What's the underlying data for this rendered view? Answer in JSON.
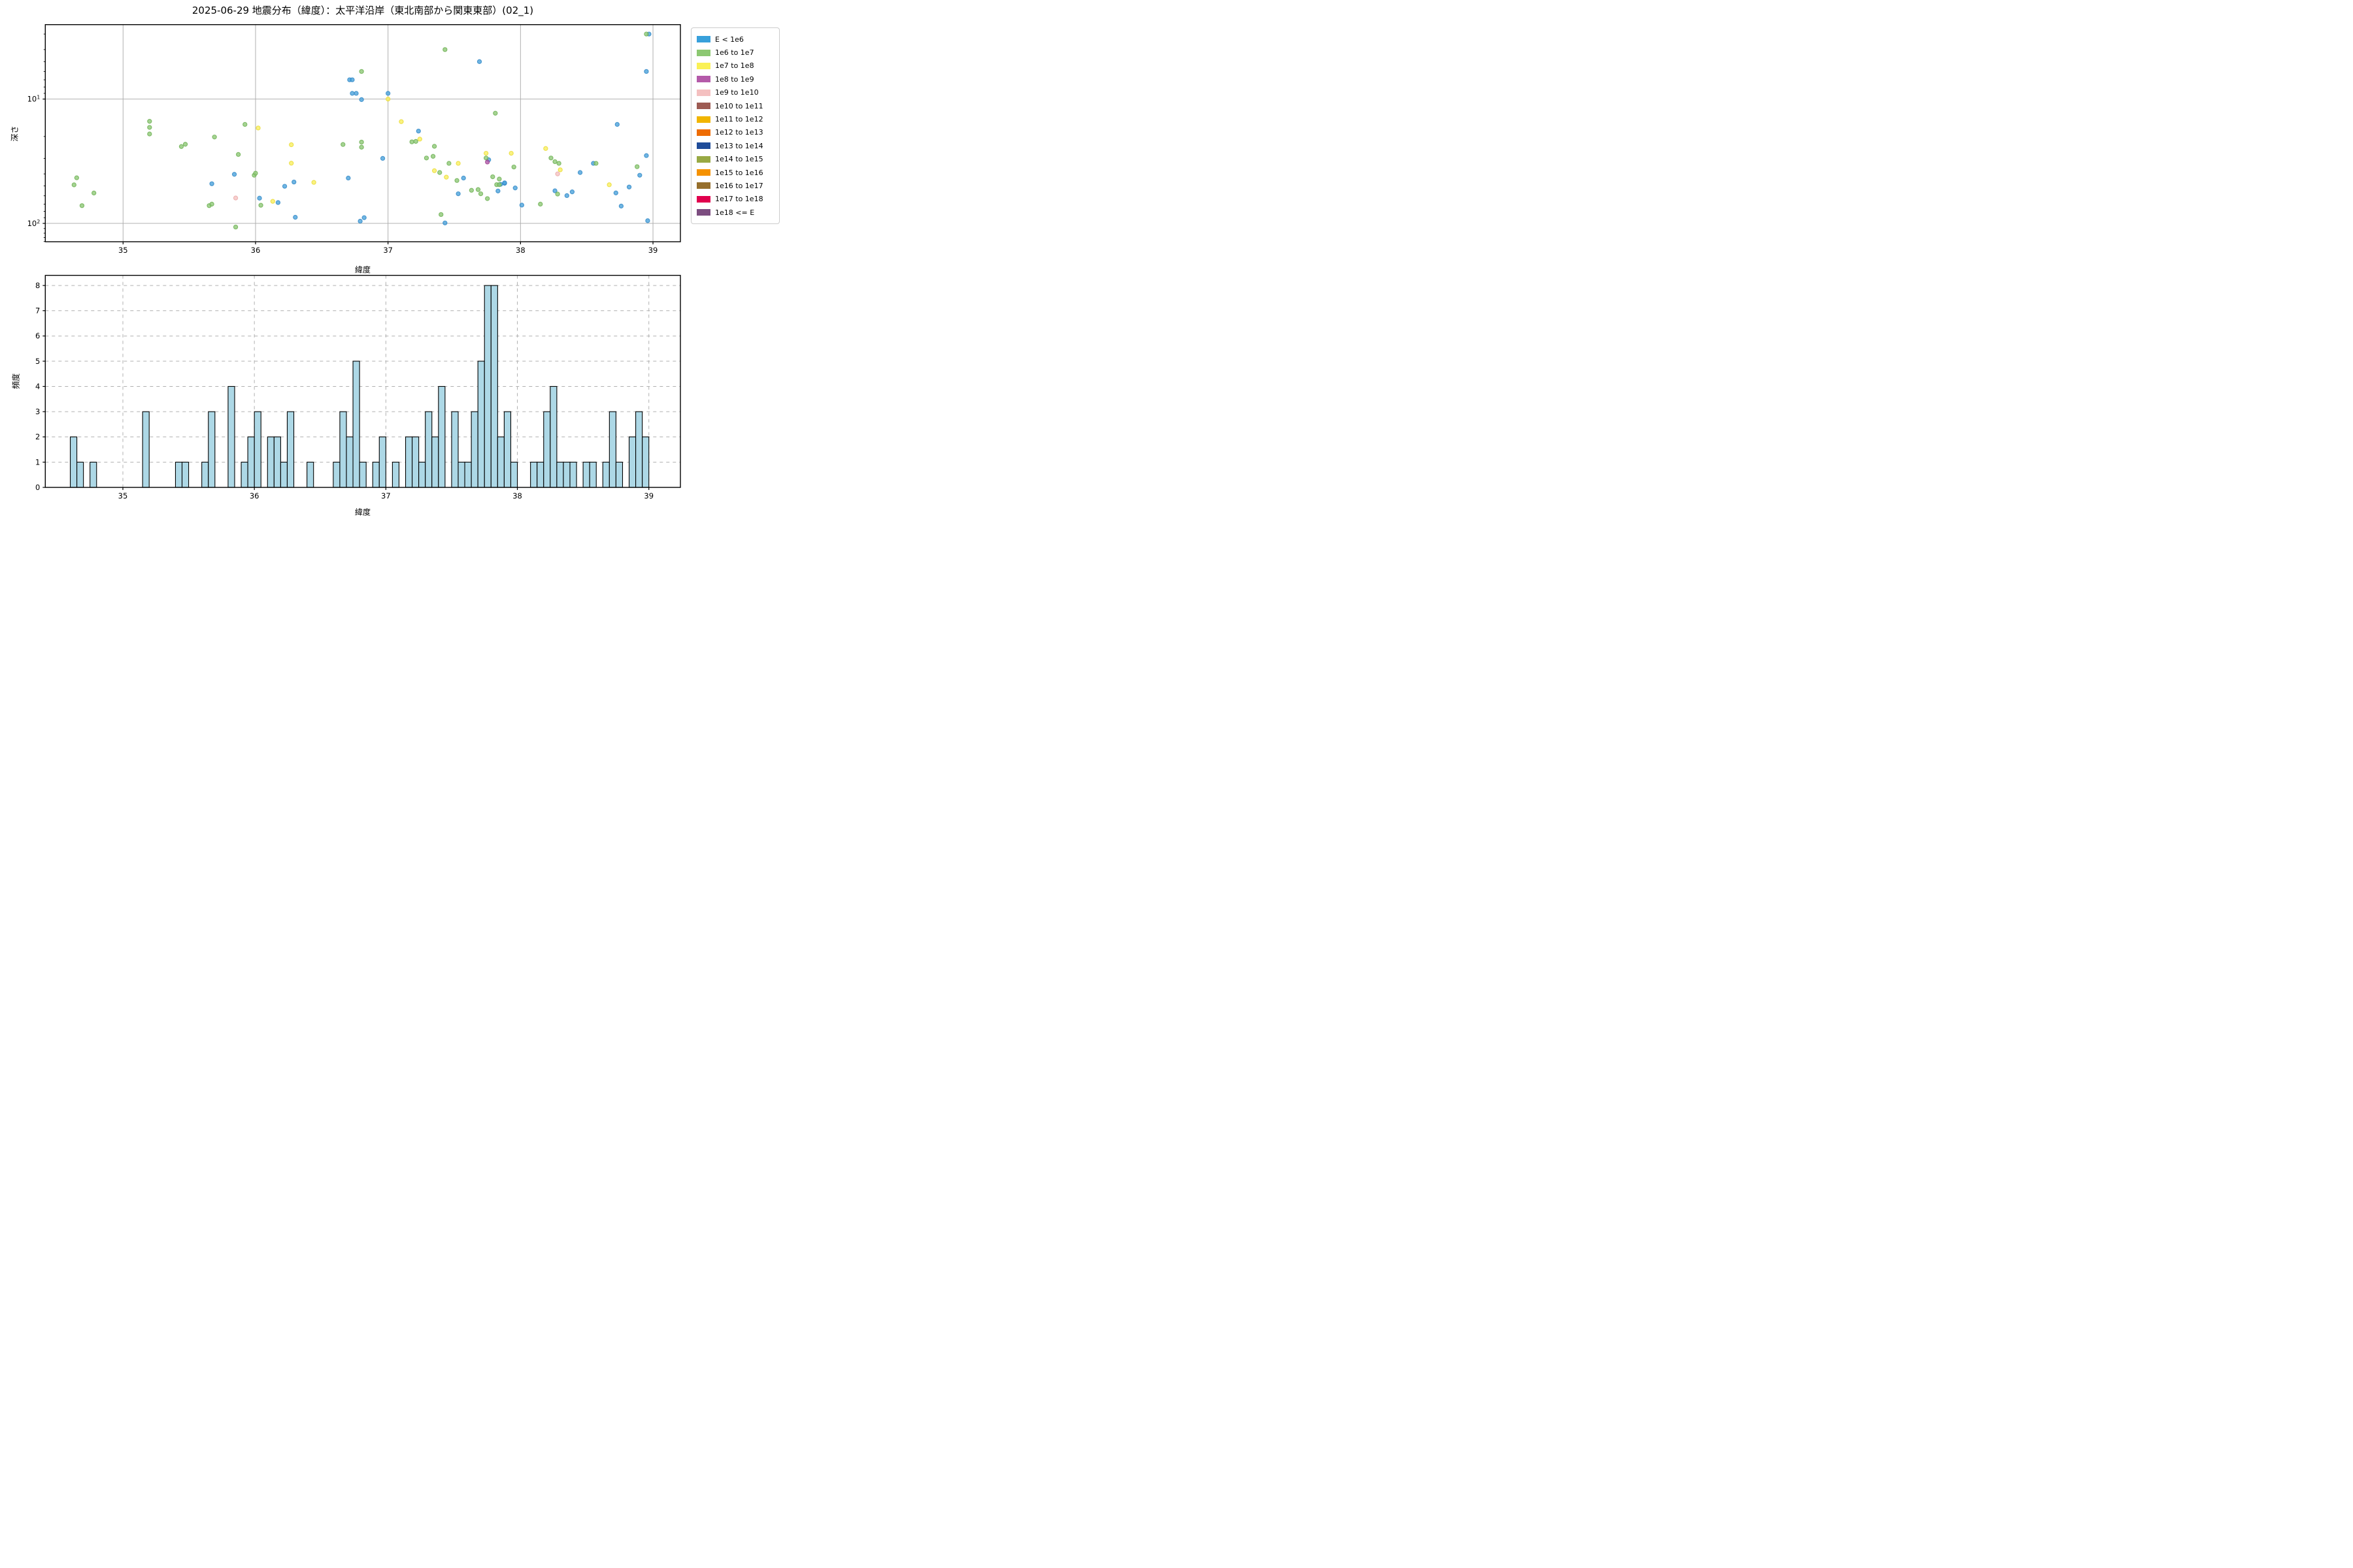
{
  "title": "2025-06-29 地震分布（緯度）：太平洋沿岸（東北南部から関東東部）(02_1)",
  "legend": {
    "items": [
      {
        "label": "E < 1e6",
        "color": "#38a0db"
      },
      {
        "label": "1e6 to 1e7",
        "color": "#8cc872"
      },
      {
        "label": "1e7 to 1e8",
        "color": "#faf156"
      },
      {
        "label": "1e8 to 1e9",
        "color": "#b45aa9"
      },
      {
        "label": "1e9 to 1e10",
        "color": "#f4c0c0"
      },
      {
        "label": "1e10 to 1e11",
        "color": "#9d5b53"
      },
      {
        "label": "1e11 to 1e12",
        "color": "#f1b500"
      },
      {
        "label": "1e12 to 1e13",
        "color": "#ee6c02"
      },
      {
        "label": "1e13 to 1e14",
        "color": "#1f4c99"
      },
      {
        "label": "1e14 to 1e15",
        "color": "#98a944"
      },
      {
        "label": "1e15 to 1e16",
        "color": "#f59200"
      },
      {
        "label": "1e16 to 1e17",
        "color": "#966f2c"
      },
      {
        "label": "1e17 to 1e18",
        "color": "#e0004d"
      },
      {
        "label": "1e18 <= E",
        "color": "#7c4d80"
      }
    ]
  },
  "chart_data": [
    {
      "type": "scatter",
      "title": "2025-06-29 地震分布（緯度）：太平洋沿岸（東北南部から関東東部）(02_1)",
      "xlabel": "緯度",
      "ylabel": "深さ",
      "xlim": [
        34.413,
        39.207
      ],
      "xticks": [
        35,
        36,
        37,
        38,
        39
      ],
      "y_scale": "log-inverted",
      "ylim_depth": [
        2.52,
        140.5
      ],
      "yticks": [
        {
          "text": "10",
          "sup": "1",
          "value": 10
        },
        {
          "text": "10",
          "sup": "2",
          "value": 100
        }
      ],
      "y_minor_ticks": [
        3,
        4,
        5,
        6,
        7,
        8,
        9,
        20,
        30,
        40,
        50,
        60,
        70,
        80,
        90,
        110,
        120,
        130,
        140
      ],
      "grid": "solid",
      "legend_position": "outside-right",
      "series": [
        {
          "name": "E < 1e6",
          "fill": "#4ba3db",
          "edge": "#2e86c5",
          "points": [
            [
              35.67,
              48
            ],
            [
              35.84,
              40.3
            ],
            [
              36.03,
              62.7
            ],
            [
              36.17,
              68
            ],
            [
              36.22,
              50.3
            ],
            [
              36.29,
              46.5
            ],
            [
              36.3,
              89.3
            ],
            [
              36.7,
              43.2
            ],
            [
              36.71,
              7.0
            ],
            [
              36.73,
              7.0
            ],
            [
              36.73,
              9.0
            ],
            [
              36.76,
              9.0
            ],
            [
              36.8,
              10.1
            ],
            [
              36.79,
              96
            ],
            [
              36.82,
              90
            ],
            [
              36.96,
              30
            ],
            [
              37.0,
              9.0
            ],
            [
              37.23,
              18.1
            ],
            [
              37.43,
              99.2
            ],
            [
              37.53,
              57.8
            ],
            [
              37.57,
              43.2
            ],
            [
              37.69,
              5.0
            ],
            [
              37.76,
              30.8
            ],
            [
              37.83,
              54.9
            ],
            [
              37.85,
              48.5
            ],
            [
              37.88,
              47.6
            ],
            [
              37.88,
              47.2
            ],
            [
              37.96,
              51.9
            ],
            [
              38.01,
              71.3
            ],
            [
              38.26,
              54.7
            ],
            [
              38.35,
              59.8
            ],
            [
              38.39,
              55.8
            ],
            [
              38.45,
              39
            ],
            [
              38.55,
              32.9
            ],
            [
              38.72,
              56.9
            ],
            [
              38.73,
              16
            ],
            [
              38.76,
              72.6
            ],
            [
              38.82,
              51
            ],
            [
              38.9,
              41
            ],
            [
              38.95,
              28.5
            ],
            [
              38.95,
              6.0
            ],
            [
              38.97,
              3.0
            ],
            [
              38.96,
              95.2
            ]
          ]
        },
        {
          "name": "1e6 to 1e7",
          "fill": "#8fc877",
          "edge": "#69ae4f",
          "points": [
            [
              34.63,
              49
            ],
            [
              34.65,
              43
            ],
            [
              34.69,
              72
            ],
            [
              34.78,
              57
            ],
            [
              35.2,
              15.1
            ],
            [
              35.2,
              16.9
            ],
            [
              35.2,
              19.1
            ],
            [
              35.44,
              24.1
            ],
            [
              35.47,
              23.1
            ],
            [
              35.65,
              72
            ],
            [
              35.67,
              70
            ],
            [
              35.69,
              20.2
            ],
            [
              35.85,
              107
            ],
            [
              35.87,
              27.9
            ],
            [
              35.92,
              16
            ],
            [
              35.99,
              41
            ],
            [
              36.0,
              39.5
            ],
            [
              36.04,
              71.5
            ],
            [
              36.66,
              23.2
            ],
            [
              36.8,
              22.2
            ],
            [
              36.8,
              24.4
            ],
            [
              36.8,
              6.0
            ],
            [
              37.18,
              22.1
            ],
            [
              37.21,
              21.9
            ],
            [
              37.29,
              29.8
            ],
            [
              37.34,
              28.9
            ],
            [
              37.35,
              24
            ],
            [
              37.39,
              39
            ],
            [
              37.4,
              84.9
            ],
            [
              37.43,
              4.0
            ],
            [
              37.46,
              32.9
            ],
            [
              37.52,
              45.2
            ],
            [
              37.63,
              54.2
            ],
            [
              37.68,
              53.5
            ],
            [
              37.7,
              57.8
            ],
            [
              37.74,
              29.8
            ],
            [
              37.75,
              63.2
            ],
            [
              37.79,
              42.2
            ],
            [
              37.81,
              13
            ],
            [
              37.82,
              48.8
            ],
            [
              37.84,
              48.8
            ],
            [
              37.84,
              44
            ],
            [
              37.95,
              35.2
            ],
            [
              38.15,
              70
            ],
            [
              38.23,
              29.8
            ],
            [
              38.26,
              31.9
            ],
            [
              38.28,
              58.1
            ],
            [
              38.29,
              32.9
            ],
            [
              38.57,
              32.9
            ],
            [
              38.88,
              35
            ],
            [
              38.95,
              3.0
            ]
          ]
        },
        {
          "name": "1e7 to 1e8",
          "fill": "#f9ef60",
          "edge": "#e8da30",
          "points": [
            [
              36.02,
              17.1
            ],
            [
              36.13,
              66.5
            ],
            [
              36.27,
              23.3
            ],
            [
              36.27,
              32.8
            ],
            [
              36.44,
              46.8
            ],
            [
              37.0,
              10.0
            ],
            [
              37.1,
              15.2
            ],
            [
              37.24,
              21.0
            ],
            [
              37.35,
              37.7
            ],
            [
              37.44,
              42.5
            ],
            [
              37.53,
              32.9
            ],
            [
              37.74,
              27.3
            ],
            [
              37.93,
              27.3
            ],
            [
              38.19,
              25.0
            ],
            [
              38.3,
              37.1
            ],
            [
              38.67,
              48.9
            ]
          ]
        },
        {
          "name": "1e8 to 1e9",
          "fill": "#b45aa9",
          "edge": "#9a3e8f",
          "points": [
            [
              37.75,
              32.1
            ]
          ]
        },
        {
          "name": "1e9 to 1e10",
          "fill": "#f5c3c2",
          "edge": "#e9a6a5",
          "points": [
            [
              35.85,
              62.5
            ],
            [
              38.28,
              40.0
            ]
          ]
        }
      ]
    },
    {
      "type": "bar",
      "xlabel": "緯度",
      "ylabel": "頻度",
      "xlim": [
        34.41,
        39.24
      ],
      "xticks": [
        35,
        36,
        37,
        38,
        39
      ],
      "ylim": [
        0,
        8.4
      ],
      "yticks": [
        0,
        1,
        2,
        3,
        4,
        5,
        6,
        7,
        8
      ],
      "grid": "dashed",
      "bar_fill": "#add8e6",
      "bar_edge": "#000000",
      "bin_width": 0.05,
      "bars": [
        {
          "x": 34.6,
          "count": 2
        },
        {
          "x": 34.65,
          "count": 1
        },
        {
          "x": 34.75,
          "count": 1
        },
        {
          "x": 35.15,
          "count": 3
        },
        {
          "x": 35.4,
          "count": 1
        },
        {
          "x": 35.45,
          "count": 1
        },
        {
          "x": 35.6,
          "count": 1
        },
        {
          "x": 35.65,
          "count": 3
        },
        {
          "x": 35.8,
          "count": 4
        },
        {
          "x": 35.9,
          "count": 1
        },
        {
          "x": 35.95,
          "count": 2
        },
        {
          "x": 36.0,
          "count": 3
        },
        {
          "x": 36.1,
          "count": 2
        },
        {
          "x": 36.15,
          "count": 2
        },
        {
          "x": 36.2,
          "count": 1
        },
        {
          "x": 36.25,
          "count": 3
        },
        {
          "x": 36.4,
          "count": 1
        },
        {
          "x": 36.6,
          "count": 1
        },
        {
          "x": 36.65,
          "count": 3
        },
        {
          "x": 36.7,
          "count": 2
        },
        {
          "x": 36.75,
          "count": 5
        },
        {
          "x": 36.8,
          "count": 1
        },
        {
          "x": 36.9,
          "count": 1
        },
        {
          "x": 36.95,
          "count": 2
        },
        {
          "x": 37.05,
          "count": 1
        },
        {
          "x": 37.15,
          "count": 2
        },
        {
          "x": 37.2,
          "count": 2
        },
        {
          "x": 37.25,
          "count": 1
        },
        {
          "x": 37.3,
          "count": 3
        },
        {
          "x": 37.35,
          "count": 2
        },
        {
          "x": 37.4,
          "count": 4
        },
        {
          "x": 37.5,
          "count": 3
        },
        {
          "x": 37.55,
          "count": 1
        },
        {
          "x": 37.6,
          "count": 1
        },
        {
          "x": 37.65,
          "count": 3
        },
        {
          "x": 37.7,
          "count": 5
        },
        {
          "x": 37.75,
          "count": 8
        },
        {
          "x": 37.8,
          "count": 8
        },
        {
          "x": 37.85,
          "count": 2
        },
        {
          "x": 37.9,
          "count": 3
        },
        {
          "x": 37.95,
          "count": 1
        },
        {
          "x": 38.1,
          "count": 1
        },
        {
          "x": 38.15,
          "count": 1
        },
        {
          "x": 38.2,
          "count": 3
        },
        {
          "x": 38.25,
          "count": 4
        },
        {
          "x": 38.3,
          "count": 1
        },
        {
          "x": 38.35,
          "count": 1
        },
        {
          "x": 38.4,
          "count": 1
        },
        {
          "x": 38.5,
          "count": 1
        },
        {
          "x": 38.55,
          "count": 1
        },
        {
          "x": 38.65,
          "count": 1
        },
        {
          "x": 38.7,
          "count": 3
        },
        {
          "x": 38.75,
          "count": 1
        },
        {
          "x": 38.85,
          "count": 2
        },
        {
          "x": 38.9,
          "count": 3
        },
        {
          "x": 38.95,
          "count": 2
        }
      ]
    }
  ],
  "style": {
    "grid_color": "#b0b0b0",
    "axis_color": "#000000",
    "tick_font_px": 11,
    "marker_radius": 3.1,
    "marker_alpha": 0.8
  }
}
